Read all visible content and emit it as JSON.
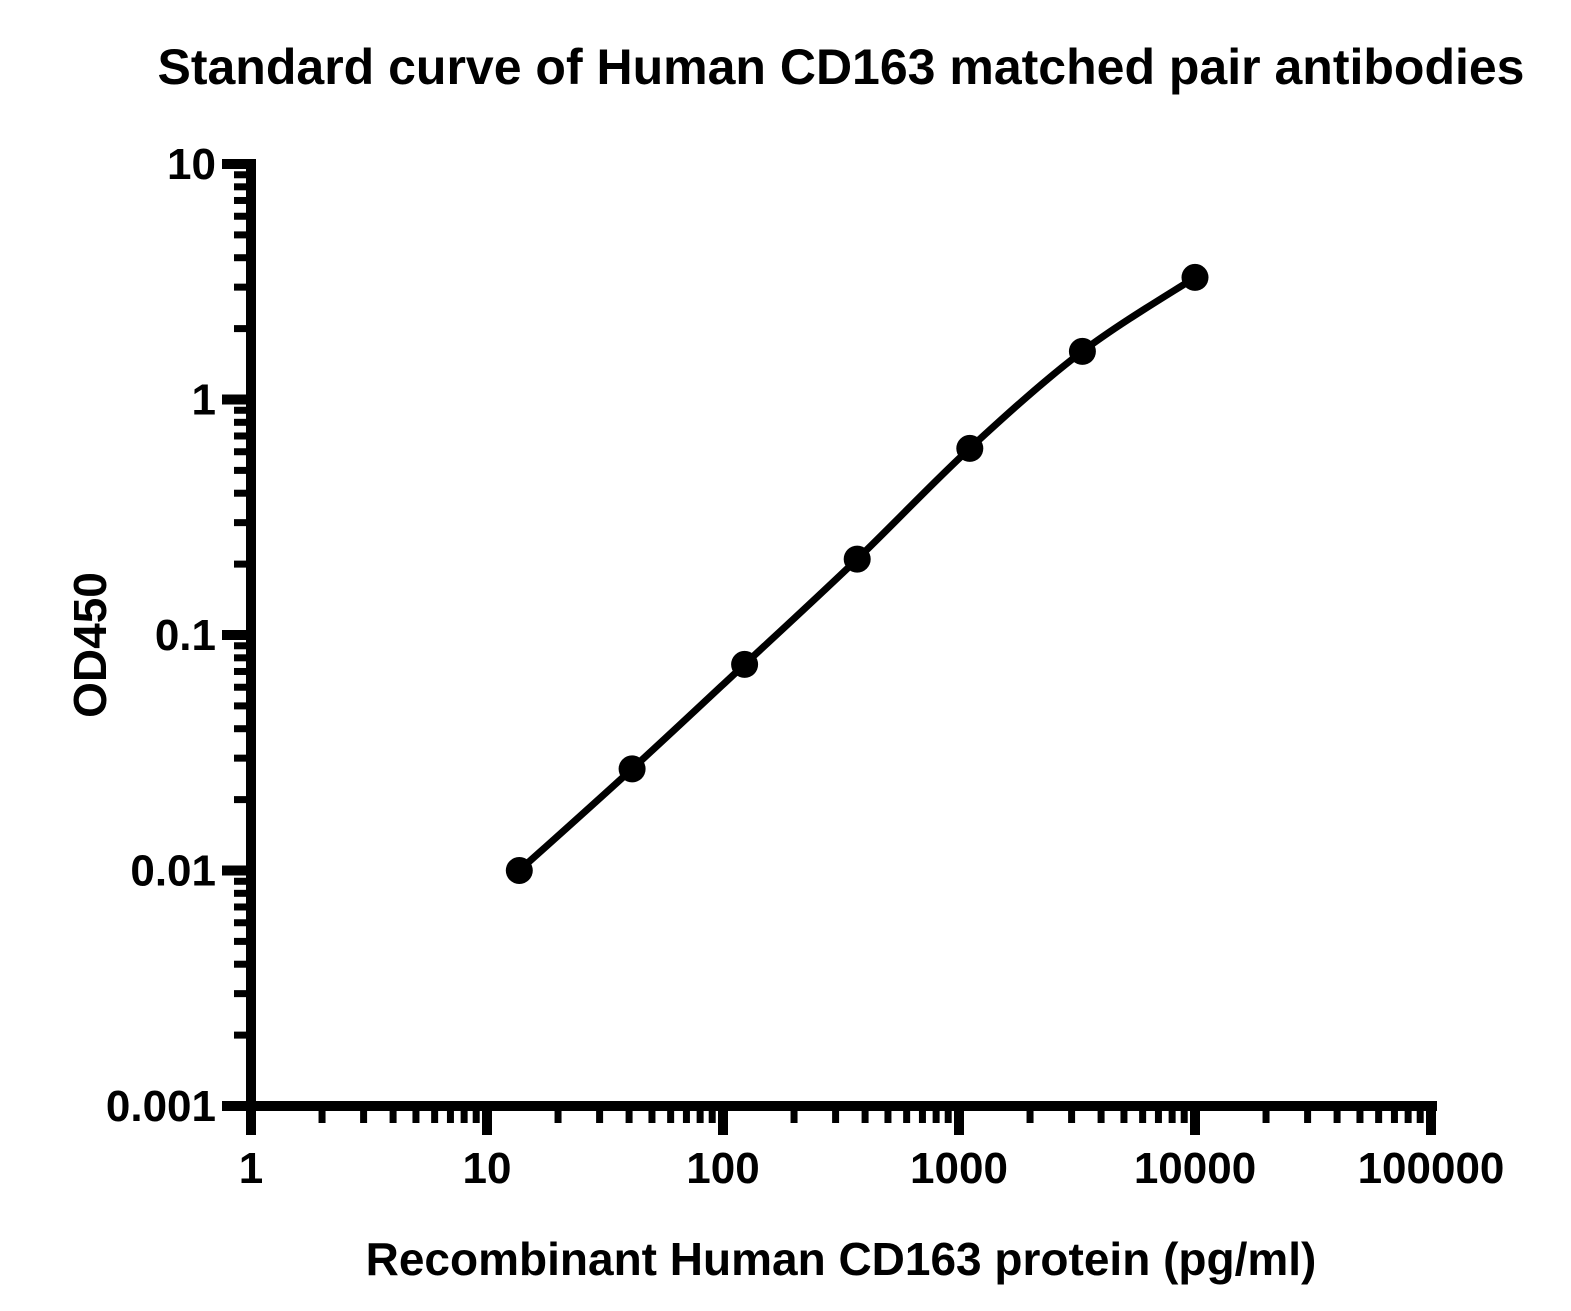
{
  "chart_data": {
    "type": "line",
    "title": "Standard curve of Human CD163 matched pair antibodies",
    "xlabel": "Recombinant Human CD163 protein (pg/ml)",
    "ylabel": "OD450",
    "x_scale": "log",
    "y_scale": "log",
    "xlim": [
      1,
      100000
    ],
    "ylim": [
      0.001,
      10
    ],
    "x_tick_labels": [
      "1",
      "10",
      "100",
      "1000",
      "10000",
      "100000"
    ],
    "y_tick_labels": [
      "0.001",
      "0.01",
      "0.1",
      "1",
      "10"
    ],
    "x": [
      13.7,
      41.2,
      123.5,
      370.4,
      1111.1,
      3333.3,
      10000
    ],
    "y": [
      0.01,
      0.027,
      0.075,
      0.21,
      0.62,
      1.6,
      3.3
    ],
    "marker": "filled-circle",
    "line_color": "#000000",
    "marker_color": "#000000",
    "grid": false,
    "background": "#ffffff"
  }
}
